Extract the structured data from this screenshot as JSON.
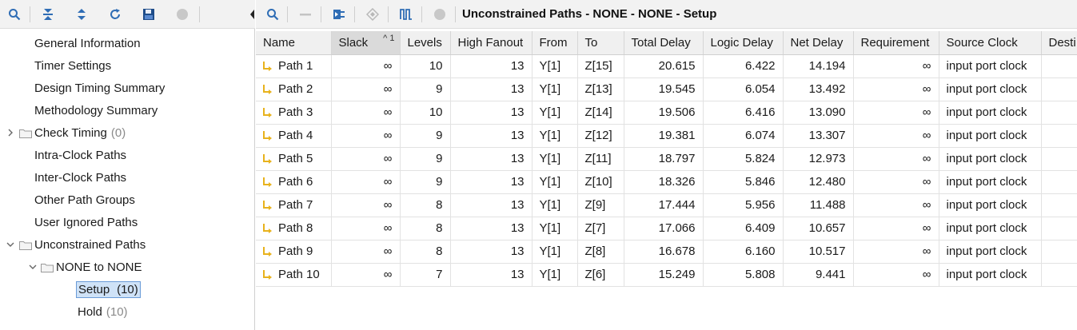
{
  "right_toolbar": {
    "title": "Unconstrained Paths - NONE - NONE - Setup"
  },
  "tree": {
    "items": [
      {
        "label": "General Information",
        "count": ""
      },
      {
        "label": "Timer Settings",
        "count": ""
      },
      {
        "label": "Design Timing Summary",
        "count": ""
      },
      {
        "label": "Methodology Summary",
        "count": ""
      },
      {
        "label": "Check Timing",
        "count": "(0)"
      },
      {
        "label": "Intra-Clock Paths",
        "count": ""
      },
      {
        "label": "Inter-Clock Paths",
        "count": ""
      },
      {
        "label": "Other Path Groups",
        "count": ""
      },
      {
        "label": "User Ignored Paths",
        "count": ""
      },
      {
        "label": "Unconstrained Paths",
        "count": ""
      },
      {
        "label": "NONE to NONE",
        "count": ""
      },
      {
        "label": "Setup",
        "count": "(10)"
      },
      {
        "label": "Hold",
        "count": "(10)"
      }
    ]
  },
  "table": {
    "columns": [
      "Name",
      "Slack",
      "Levels",
      "High Fanout",
      "From",
      "To",
      "Total Delay",
      "Logic Delay",
      "Net Delay",
      "Requirement",
      "Source Clock",
      "Desti"
    ],
    "sort_indicator": "^ 1",
    "rows": [
      {
        "name": "Path 1",
        "slack": "∞",
        "levels": "10",
        "fanout": "13",
        "from": "Y[1]",
        "to": "Z[15]",
        "total": "20.615",
        "logic": "6.422",
        "net": "14.194",
        "req": "∞",
        "src": "input port clock"
      },
      {
        "name": "Path 2",
        "slack": "∞",
        "levels": "9",
        "fanout": "13",
        "from": "Y[1]",
        "to": "Z[13]",
        "total": "19.545",
        "logic": "6.054",
        "net": "13.492",
        "req": "∞",
        "src": "input port clock"
      },
      {
        "name": "Path 3",
        "slack": "∞",
        "levels": "10",
        "fanout": "13",
        "from": "Y[1]",
        "to": "Z[14]",
        "total": "19.506",
        "logic": "6.416",
        "net": "13.090",
        "req": "∞",
        "src": "input port clock"
      },
      {
        "name": "Path 4",
        "slack": "∞",
        "levels": "9",
        "fanout": "13",
        "from": "Y[1]",
        "to": "Z[12]",
        "total": "19.381",
        "logic": "6.074",
        "net": "13.307",
        "req": "∞",
        "src": "input port clock"
      },
      {
        "name": "Path 5",
        "slack": "∞",
        "levels": "9",
        "fanout": "13",
        "from": "Y[1]",
        "to": "Z[11]",
        "total": "18.797",
        "logic": "5.824",
        "net": "12.973",
        "req": "∞",
        "src": "input port clock"
      },
      {
        "name": "Path 6",
        "slack": "∞",
        "levels": "9",
        "fanout": "13",
        "from": "Y[1]",
        "to": "Z[10]",
        "total": "18.326",
        "logic": "5.846",
        "net": "12.480",
        "req": "∞",
        "src": "input port clock"
      },
      {
        "name": "Path 7",
        "slack": "∞",
        "levels": "8",
        "fanout": "13",
        "from": "Y[1]",
        "to": "Z[9]",
        "total": "17.444",
        "logic": "5.956",
        "net": "11.488",
        "req": "∞",
        "src": "input port clock"
      },
      {
        "name": "Path 8",
        "slack": "∞",
        "levels": "8",
        "fanout": "13",
        "from": "Y[1]",
        "to": "Z[7]",
        "total": "17.066",
        "logic": "6.409",
        "net": "10.657",
        "req": "∞",
        "src": "input port clock"
      },
      {
        "name": "Path 9",
        "slack": "∞",
        "levels": "8",
        "fanout": "13",
        "from": "Y[1]",
        "to": "Z[8]",
        "total": "16.678",
        "logic": "6.160",
        "net": "10.517",
        "req": "∞",
        "src": "input port clock"
      },
      {
        "name": "Path 10",
        "slack": "∞",
        "levels": "7",
        "fanout": "13",
        "from": "Y[1]",
        "to": "Z[6]",
        "total": "15.249",
        "logic": "5.808",
        "net": "9.441",
        "req": "∞",
        "src": "input port clock"
      }
    ]
  },
  "colors": {
    "icon_blue": "#2f6db5",
    "path_icon_yellow": "#e8b21c",
    "selection_fill": "#cfe2f7",
    "selection_border": "#6a9bd8"
  }
}
